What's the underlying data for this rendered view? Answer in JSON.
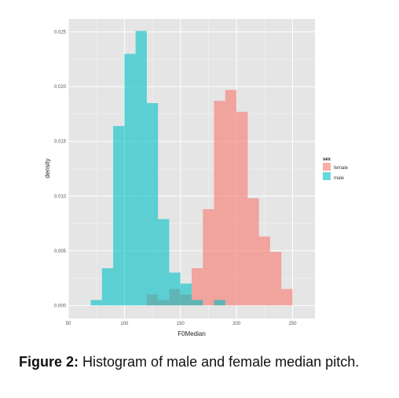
{
  "chart_data": {
    "type": "histogram",
    "xlabel": "F0Median",
    "ylabel": "density",
    "xlim": [
      50,
      270
    ],
    "ylim": [
      -0.0012,
      0.0262
    ],
    "x_ticks": [
      50,
      100,
      150,
      200,
      250
    ],
    "y_ticks": [
      0.0,
      0.005,
      0.01,
      0.015,
      0.02,
      0.025
    ],
    "x_tick_labels": [
      "50",
      "100",
      "150",
      "200",
      "250"
    ],
    "y_tick_labels": [
      "0.000",
      "0.005",
      "0.010",
      "0.015",
      "0.020",
      "0.025"
    ],
    "bin_width": 10,
    "grid": true,
    "legend": {
      "title": "sex",
      "position": "right"
    },
    "series": [
      {
        "name": "female",
        "color": "#F8766D",
        "bins": [
          {
            "x0": 120,
            "x1": 130,
            "density": 0.001
          },
          {
            "x0": 130,
            "x1": 140,
            "density": 0.0005
          },
          {
            "x0": 140,
            "x1": 150,
            "density": 0.0015
          },
          {
            "x0": 150,
            "x1": 160,
            "density": 0.001
          },
          {
            "x0": 160,
            "x1": 170,
            "density": 0.0034
          },
          {
            "x0": 170,
            "x1": 180,
            "density": 0.0088
          },
          {
            "x0": 180,
            "x1": 190,
            "density": 0.0187
          },
          {
            "x0": 190,
            "x1": 200,
            "density": 0.0197
          },
          {
            "x0": 200,
            "x1": 210,
            "density": 0.0177
          },
          {
            "x0": 210,
            "x1": 220,
            "density": 0.0098
          },
          {
            "x0": 220,
            "x1": 230,
            "density": 0.0063
          },
          {
            "x0": 230,
            "x1": 240,
            "density": 0.0049
          },
          {
            "x0": 240,
            "x1": 250,
            "density": 0.0015
          }
        ]
      },
      {
        "name": "male",
        "color": "#00BFC4",
        "bins": [
          {
            "x0": 70,
            "x1": 80,
            "density": 0.0005
          },
          {
            "x0": 80,
            "x1": 90,
            "density": 0.0034
          },
          {
            "x0": 90,
            "x1": 100,
            "density": 0.0164
          },
          {
            "x0": 100,
            "x1": 110,
            "density": 0.023
          },
          {
            "x0": 110,
            "x1": 120,
            "density": 0.0251
          },
          {
            "x0": 120,
            "x1": 130,
            "density": 0.0185
          },
          {
            "x0": 130,
            "x1": 140,
            "density": 0.0079
          },
          {
            "x0": 140,
            "x1": 150,
            "density": 0.003
          },
          {
            "x0": 150,
            "x1": 160,
            "density": 0.002
          },
          {
            "x0": 160,
            "x1": 170,
            "density": 0.0005
          },
          {
            "x0": 170,
            "x1": 180,
            "density": 0.0
          },
          {
            "x0": 180,
            "x1": 190,
            "density": 0.0005
          }
        ]
      }
    ]
  },
  "caption": {
    "label": "Figure 2:",
    "text": "Histogram of male and female median pitch."
  }
}
